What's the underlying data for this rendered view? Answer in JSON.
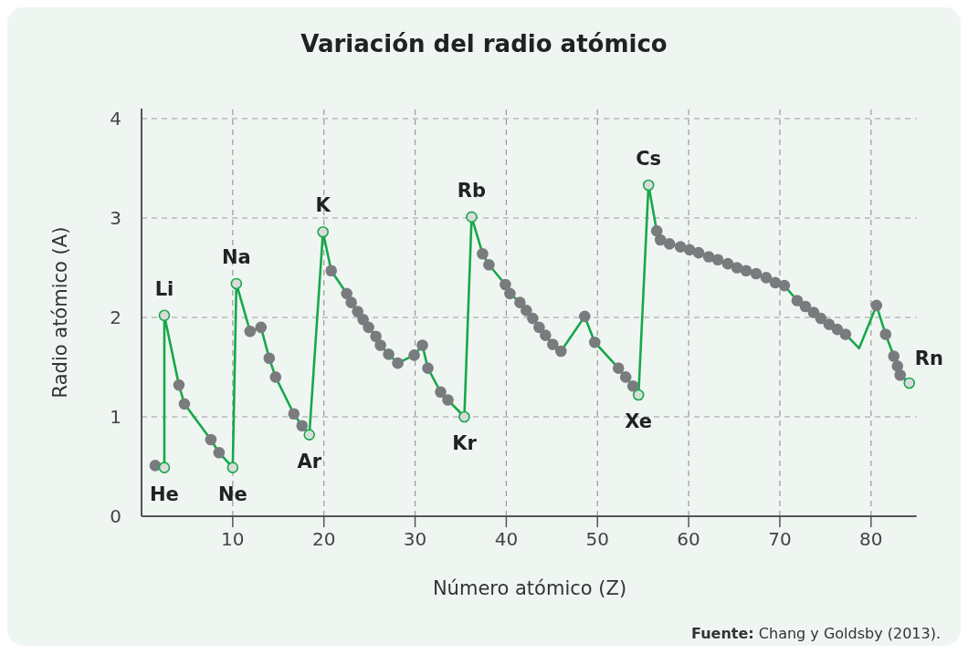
{
  "chart_data": {
    "type": "line",
    "title": "Variación del radio atómico",
    "xlabel": "Número atómico (Z)",
    "ylabel": "Radio atómico (A)",
    "xlim": [
      0,
      85
    ],
    "xticks": [
      10,
      20,
      30,
      40,
      50,
      60,
      70,
      80
    ],
    "ylim": [
      0,
      4.1
    ],
    "yticks": [
      0,
      1,
      2,
      3,
      4
    ],
    "grid": true,
    "series": [
      {
        "color": "#17a84b",
        "marker": "none",
        "x": [
          2.5,
          2.5,
          4.1,
          4.7,
          7.6,
          8.5,
          10.0,
          10.4,
          11.9,
          13.1,
          14.0,
          14.7,
          16.7,
          17.6,
          18.4,
          19.9,
          20.8,
          22.5,
          23.0,
          23.7,
          24.3,
          24.9,
          25.7,
          26.2,
          27.1,
          28.1,
          29.9,
          30.8,
          31.4,
          32.8,
          33.6,
          35.4,
          36.2,
          37.4,
          38.1,
          39.9,
          40.4,
          41.5,
          42.2,
          42.9,
          43.6,
          44.3,
          45.1,
          46.0,
          48.6,
          49.7,
          52.3,
          53.1,
          53.9,
          54.5,
          55.6,
          56.5,
          56.9,
          57.9,
          59.1,
          60.1,
          61.1,
          62.2,
          63.2,
          64.3,
          65.3,
          66.3,
          67.4,
          68.5,
          69.5,
          70.5,
          71.9,
          72.8,
          73.7,
          74.5,
          75.4,
          76.3,
          77.2,
          78.7,
          80.6,
          81.6,
          82.5,
          82.9,
          83.2,
          84.2
        ],
        "values": [
          0.49,
          2.02,
          1.32,
          1.13,
          0.77,
          0.64,
          0.49,
          2.34,
          1.86,
          1.9,
          1.59,
          1.4,
          1.03,
          0.91,
          0.82,
          2.86,
          2.47,
          2.24,
          2.15,
          2.06,
          1.98,
          1.9,
          1.81,
          1.72,
          1.63,
          1.54,
          1.62,
          1.72,
          1.49,
          1.25,
          1.17,
          1.0,
          3.01,
          2.64,
          2.53,
          2.33,
          2.24,
          2.15,
          2.07,
          1.99,
          1.9,
          1.82,
          1.73,
          1.66,
          2.01,
          1.75,
          1.49,
          1.4,
          1.31,
          1.22,
          3.33,
          2.87,
          2.78,
          2.74,
          2.71,
          2.68,
          2.65,
          2.61,
          2.58,
          2.54,
          2.5,
          2.47,
          2.44,
          2.4,
          2.35,
          2.32,
          2.17,
          2.11,
          2.05,
          1.99,
          1.93,
          1.88,
          1.83,
          1.69,
          2.12,
          1.83,
          1.61,
          1.51,
          1.42,
          1.34
        ]
      },
      {
        "type": "scatter",
        "color": "#7a7b7e",
        "marker": "circle",
        "x": [
          1.5,
          4.1,
          4.7,
          7.6,
          8.5,
          11.9,
          13.1,
          14.0,
          14.7,
          16.7,
          17.6,
          20.8,
          22.5,
          23.0,
          23.7,
          24.3,
          24.9,
          25.7,
          26.2,
          27.1,
          28.1,
          29.9,
          30.8,
          31.4,
          32.8,
          33.6,
          37.4,
          38.1,
          39.9,
          40.4,
          41.5,
          42.2,
          42.9,
          43.6,
          44.3,
          45.1,
          46.0,
          48.6,
          49.7,
          52.3,
          53.1,
          53.9,
          56.5,
          56.9,
          57.9,
          59.1,
          60.1,
          61.1,
          62.2,
          63.2,
          64.3,
          65.3,
          66.3,
          67.4,
          68.5,
          69.5,
          70.5,
          71.9,
          72.8,
          73.7,
          74.5,
          75.4,
          76.3,
          77.2,
          80.6,
          81.6,
          82.5,
          82.9,
          83.2
        ],
        "values": [
          0.51,
          1.32,
          1.13,
          0.77,
          0.64,
          1.86,
          1.9,
          1.59,
          1.4,
          1.03,
          0.91,
          2.47,
          2.24,
          2.15,
          2.06,
          1.98,
          1.9,
          1.81,
          1.72,
          1.63,
          1.54,
          1.62,
          1.72,
          1.49,
          1.25,
          1.17,
          2.64,
          2.53,
          2.33,
          2.24,
          2.15,
          2.07,
          1.99,
          1.9,
          1.82,
          1.73,
          1.66,
          2.01,
          1.75,
          1.49,
          1.4,
          1.31,
          2.87,
          2.78,
          2.74,
          2.71,
          2.68,
          2.65,
          2.61,
          2.58,
          2.54,
          2.5,
          2.47,
          2.44,
          2.4,
          2.35,
          2.32,
          2.17,
          2.11,
          2.05,
          1.99,
          1.93,
          1.88,
          1.83,
          2.12,
          1.83,
          1.61,
          1.51,
          1.42
        ]
      },
      {
        "type": "scatter",
        "color": "#d9dcdb",
        "marker": "circle",
        "x": [
          2.5,
          2.5,
          10.0,
          10.4,
          18.4,
          19.9,
          35.4,
          36.2,
          54.5,
          55.6,
          84.2
        ],
        "values": [
          0.49,
          2.02,
          0.49,
          2.34,
          0.82,
          2.86,
          1.0,
          3.01,
          1.22,
          3.33,
          1.34
        ]
      }
    ],
    "annotations": [
      {
        "text": "He",
        "x": 2.5,
        "y": 0.49
      },
      {
        "text": "Li",
        "x": 2.5,
        "y": 2.02
      },
      {
        "text": "Ne",
        "x": 10.0,
        "y": 0.49
      },
      {
        "text": "Na",
        "x": 10.4,
        "y": 2.34
      },
      {
        "text": "Ar",
        "x": 18.4,
        "y": 0.82
      },
      {
        "text": "K",
        "x": 19.9,
        "y": 2.86
      },
      {
        "text": "Kr",
        "x": 35.4,
        "y": 1.0
      },
      {
        "text": "Rb",
        "x": 36.2,
        "y": 3.01
      },
      {
        "text": "Xe",
        "x": 54.5,
        "y": 1.22
      },
      {
        "text": "Cs",
        "x": 55.6,
        "y": 3.33
      },
      {
        "text": "Rn",
        "x": 84.2,
        "y": 1.34
      },
      "Fuente: Chang y Goldsby (2013)."
    ]
  }
}
